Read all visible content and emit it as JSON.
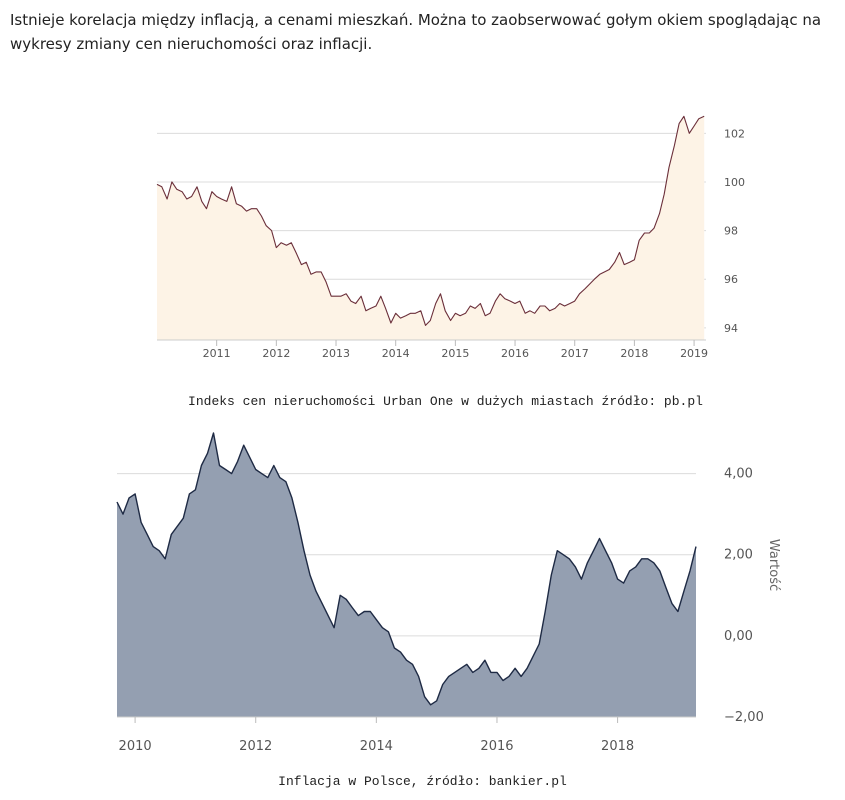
{
  "intro_text": "Istnieje korelacja między inflacją, a cenami mieszkań. Można to zaobserwować gołym okiem spoglądając na wykresy zmiany cen nieruchomości oraz inflacji.",
  "chart_data": [
    {
      "type": "area",
      "caption": "Indeks cen nieruchomości Urban One w dużych miastach źródło: pb.pl",
      "title": "",
      "xlabel": "",
      "ylabel": "",
      "xlim": [
        2010.0,
        2019.2
      ],
      "ylim": [
        93.5,
        103
      ],
      "x_ticks": [
        2011,
        2012,
        2013,
        2014,
        2015,
        2016,
        2017,
        2018,
        2019
      ],
      "y_ticks": [
        94,
        96,
        98,
        100,
        102
      ],
      "line_color": "#6b2f3a",
      "fill_color": "#fdf3e6",
      "grid": true,
      "series": [
        {
          "x": [
            2010.0,
            2010.08,
            2010.17,
            2010.25,
            2010.33,
            2010.42,
            2010.5,
            2010.58,
            2010.67,
            2010.75,
            2010.83,
            2010.92,
            2011.0,
            2011.08,
            2011.17,
            2011.25,
            2011.33,
            2011.42,
            2011.5,
            2011.58,
            2011.67,
            2011.75,
            2011.83,
            2011.92,
            2012.0,
            2012.08,
            2012.17,
            2012.25,
            2012.33,
            2012.42,
            2012.5,
            2012.58,
            2012.67,
            2012.75,
            2012.83,
            2012.92,
            2013.0,
            2013.08,
            2013.17,
            2013.25,
            2013.33,
            2013.42,
            2013.5,
            2013.58,
            2013.67,
            2013.75,
            2013.83,
            2013.92,
            2014.0,
            2014.08,
            2014.17,
            2014.25,
            2014.33,
            2014.42,
            2014.5,
            2014.58,
            2014.67,
            2014.75,
            2014.83,
            2014.92,
            2015.0,
            2015.08,
            2015.17,
            2015.25,
            2015.33,
            2015.42,
            2015.5,
            2015.58,
            2015.67,
            2015.75,
            2015.83,
            2015.92,
            2016.0,
            2016.08,
            2016.17,
            2016.25,
            2016.33,
            2016.42,
            2016.5,
            2016.58,
            2016.67,
            2016.75,
            2016.83,
            2016.92,
            2017.0,
            2017.08,
            2017.17,
            2017.25,
            2017.33,
            2017.42,
            2017.5,
            2017.58,
            2017.67,
            2017.75,
            2017.83,
            2017.92,
            2018.0,
            2018.08,
            2018.17,
            2018.25,
            2018.33,
            2018.42,
            2018.5,
            2018.58,
            2018.67,
            2018.75,
            2018.83,
            2018.92,
            2019.0,
            2019.08,
            2019.17
          ],
          "values": [
            99.9,
            99.8,
            99.3,
            100.0,
            99.7,
            99.6,
            99.3,
            99.4,
            99.8,
            99.2,
            98.9,
            99.6,
            99.4,
            99.3,
            99.2,
            99.8,
            99.1,
            99.0,
            98.8,
            98.9,
            98.9,
            98.6,
            98.2,
            98.0,
            97.3,
            97.5,
            97.4,
            97.5,
            97.1,
            96.6,
            96.7,
            96.2,
            96.3,
            96.3,
            95.9,
            95.3,
            95.3,
            95.3,
            95.4,
            95.1,
            95.0,
            95.3,
            94.7,
            94.8,
            94.9,
            95.3,
            94.8,
            94.2,
            94.6,
            94.4,
            94.5,
            94.6,
            94.6,
            94.7,
            94.1,
            94.3,
            95.0,
            95.4,
            94.7,
            94.3,
            94.6,
            94.5,
            94.6,
            94.9,
            94.8,
            95.0,
            94.5,
            94.6,
            95.1,
            95.4,
            95.2,
            95.1,
            95.0,
            95.1,
            94.6,
            94.7,
            94.6,
            94.9,
            94.9,
            94.7,
            94.8,
            95.0,
            94.9,
            95.0,
            95.1,
            95.4,
            95.6,
            95.8,
            96.0,
            96.2,
            96.3,
            96.4,
            96.7,
            97.1,
            96.6,
            96.7,
            96.8,
            97.6,
            97.9,
            97.9,
            98.1,
            98.7,
            99.5,
            100.6,
            101.5,
            102.4,
            102.7,
            102.0,
            102.3,
            102.6,
            102.7
          ]
        }
      ]
    },
    {
      "type": "area",
      "caption": "Inflacja w Polsce, źródło: bankier.pl",
      "title": "",
      "xlabel": "",
      "ylabel": "Wartość",
      "xlim": [
        2009.7,
        2019.3
      ],
      "ylim": [
        -2.0,
        5.0
      ],
      "x_ticks": [
        2010,
        2012,
        2014,
        2016,
        2018
      ],
      "y_ticks": [
        -2,
        0,
        2,
        4
      ],
      "y_tick_labels": [
        "−2,00",
        "0,00",
        "2,00",
        "4,00"
      ],
      "line_color": "#1e2a44",
      "fill_color": "#949fb1",
      "grid": true,
      "series": [
        {
          "x": [
            2009.7,
            2009.8,
            2009.9,
            2010.0,
            2010.1,
            2010.2,
            2010.3,
            2010.4,
            2010.5,
            2010.6,
            2010.7,
            2010.8,
            2010.9,
            2011.0,
            2011.1,
            2011.2,
            2011.3,
            2011.4,
            2011.5,
            2011.6,
            2011.7,
            2011.8,
            2011.9,
            2012.0,
            2012.1,
            2012.2,
            2012.3,
            2012.4,
            2012.5,
            2012.6,
            2012.7,
            2012.8,
            2012.9,
            2013.0,
            2013.1,
            2013.2,
            2013.3,
            2013.4,
            2013.5,
            2013.6,
            2013.7,
            2013.8,
            2013.9,
            2014.0,
            2014.1,
            2014.2,
            2014.3,
            2014.4,
            2014.5,
            2014.6,
            2014.7,
            2014.8,
            2014.9,
            2015.0,
            2015.1,
            2015.2,
            2015.3,
            2015.4,
            2015.5,
            2015.6,
            2015.7,
            2015.8,
            2015.9,
            2016.0,
            2016.1,
            2016.2,
            2016.3,
            2016.4,
            2016.5,
            2016.6,
            2016.7,
            2016.8,
            2016.9,
            2017.0,
            2017.1,
            2017.2,
            2017.3,
            2017.4,
            2017.5,
            2017.6,
            2017.7,
            2017.8,
            2017.9,
            2018.0,
            2018.1,
            2018.2,
            2018.3,
            2018.4,
            2018.5,
            2018.6,
            2018.7,
            2018.8,
            2018.9,
            2019.0,
            2019.1,
            2019.2,
            2019.3
          ],
          "values": [
            3.3,
            3.0,
            3.4,
            3.5,
            2.8,
            2.5,
            2.2,
            2.1,
            1.9,
            2.5,
            2.7,
            2.9,
            3.5,
            3.6,
            4.2,
            4.5,
            5.0,
            4.2,
            4.1,
            4.0,
            4.3,
            4.7,
            4.4,
            4.1,
            4.0,
            3.9,
            4.2,
            3.9,
            3.8,
            3.4,
            2.8,
            2.1,
            1.5,
            1.1,
            0.8,
            0.5,
            0.2,
            1.0,
            0.9,
            0.7,
            0.5,
            0.6,
            0.6,
            0.4,
            0.2,
            0.1,
            -0.3,
            -0.4,
            -0.6,
            -0.7,
            -1.0,
            -1.5,
            -1.7,
            -1.6,
            -1.2,
            -1.0,
            -0.9,
            -0.8,
            -0.7,
            -0.9,
            -0.8,
            -0.6,
            -0.9,
            -0.9,
            -1.1,
            -1.0,
            -0.8,
            -1.0,
            -0.8,
            -0.5,
            -0.2,
            0.6,
            1.5,
            2.1,
            2.0,
            1.9,
            1.7,
            1.4,
            1.8,
            2.1,
            2.4,
            2.1,
            1.8,
            1.4,
            1.3,
            1.6,
            1.7,
            1.9,
            1.9,
            1.8,
            1.6,
            1.2,
            0.8,
            0.6,
            1.1,
            1.6,
            2.2
          ]
        }
      ]
    }
  ]
}
